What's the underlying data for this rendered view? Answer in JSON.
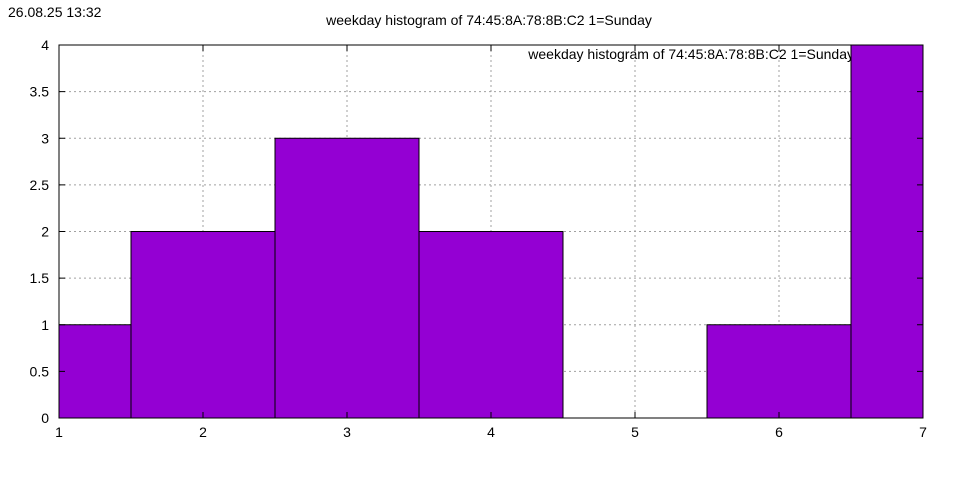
{
  "header": {
    "timestamp": "26.08.25 13:32"
  },
  "chart_data": {
    "type": "bar",
    "title": "weekday histogram of 74:45:8A:78:8B:C2 1=Sunday",
    "legend_label": "weekday histogram of 74:45:8A:78:8B:C2 1=Sunday",
    "legend_position": "top-right",
    "xlabel": "",
    "ylabel": "",
    "x": [
      1,
      2,
      3,
      4,
      5,
      6,
      7
    ],
    "values": [
      1,
      2,
      3,
      2,
      0,
      1,
      4
    ],
    "xlim": [
      1,
      7
    ],
    "ylim": [
      0,
      4
    ],
    "xticks": [
      "1",
      "2",
      "3",
      "4",
      "5",
      "6",
      "7"
    ],
    "yticks": [
      "0",
      "0.5",
      "1",
      "1.5",
      "2",
      "2.5",
      "3",
      "3.5",
      "4"
    ],
    "grid": true,
    "bar_color": "#9400d3"
  }
}
